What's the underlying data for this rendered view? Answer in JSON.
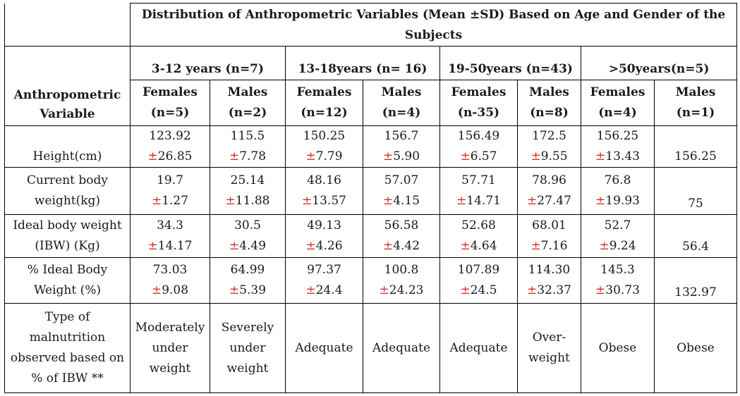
{
  "title": "Distribution of Anthropometric Variables (Mean ±SD) Based on Age and Gender of the Subjects",
  "variable_header": "Anthropometric Variable",
  "groups": [
    "3-12 years (n=7)",
    "13-18years (n= 16)",
    "19-50years (n=43)",
    ">50years(n=5)"
  ],
  "subgroups": [
    {
      "gender": "Females",
      "n": "(n=5)"
    },
    {
      "gender": "Males",
      "n": "(n=2)"
    },
    {
      "gender": "Females",
      "n": "(n=12)"
    },
    {
      "gender": "Males",
      "n": "(n=4)"
    },
    {
      "gender": "Females",
      "n": "(n-35)"
    },
    {
      "gender": "Males",
      "n": "(n=8)"
    },
    {
      "gender": "Females",
      "n": "(n=4)"
    },
    {
      "gender": "Males",
      "n": "(n=1)"
    }
  ],
  "pm_symbol": "±",
  "rows": [
    {
      "label": [
        "Height(cm)"
      ],
      "cells": [
        {
          "mean": "123.92",
          "sd": "26.85"
        },
        {
          "mean": "115.5",
          "sd": "7.78"
        },
        {
          "mean": "150.25",
          "sd": "7.79"
        },
        {
          "mean": "156.7",
          "sd": "5.90"
        },
        {
          "mean": "156.49",
          "sd": "6.57"
        },
        {
          "mean": "172.5",
          "sd": "9.55"
        },
        {
          "mean": "156.25",
          "sd": "13.43"
        },
        {
          "value": "156.25"
        }
      ]
    },
    {
      "label": [
        "Current body",
        "weight(kg)"
      ],
      "cells": [
        {
          "mean": "19.7",
          "sd": "1.27"
        },
        {
          "mean": "25.14",
          "sd": "11.88"
        },
        {
          "mean": "48.16",
          "sd": "13.57"
        },
        {
          "mean": "57.07",
          "sd": "4.15"
        },
        {
          "mean": "57.71",
          "sd": "14.71"
        },
        {
          "mean": "78.96",
          "sd": "27.47"
        },
        {
          "mean": "76.8",
          "sd": "19.93"
        },
        {
          "value": "75"
        }
      ]
    },
    {
      "label": [
        "Ideal body weight",
        "(IBW) (Kg)"
      ],
      "cells": [
        {
          "mean": "34.3",
          "sd": "14.17"
        },
        {
          "mean": "30.5",
          "sd": "4.49"
        },
        {
          "mean": "49.13",
          "sd": "4.26"
        },
        {
          "mean": "56.58",
          "sd": "4.42"
        },
        {
          "mean": "52.68",
          "sd": "4.64"
        },
        {
          "mean": "68.01",
          "sd": "7.16"
        },
        {
          "mean": "52.7",
          "sd": "9.24"
        },
        {
          "value": "56.4"
        }
      ]
    },
    {
      "label": [
        "% Ideal Body",
        "Weight (%)"
      ],
      "cells": [
        {
          "mean": "73.03",
          "sd": "9.08"
        },
        {
          "mean": "64.99",
          "sd": "5.39"
        },
        {
          "mean": "97.37",
          "sd": "24.4"
        },
        {
          "mean": "100.8",
          "sd": "24.23"
        },
        {
          "mean": "107.89",
          "sd": "24.5"
        },
        {
          "mean": "114.30",
          "sd": "32.37"
        },
        {
          "mean": "145.3",
          "sd": "30.73"
        },
        {
          "value": "132.97"
        }
      ]
    },
    {
      "label": [
        "Type of",
        "malnutrition",
        "observed based on",
        "% of IBW **"
      ],
      "cells": [
        {
          "lines": [
            "Moderately",
            "under",
            "weight"
          ]
        },
        {
          "lines": [
            "Severely",
            "under",
            "weight"
          ]
        },
        {
          "lines": [
            "Adequate"
          ]
        },
        {
          "lines": [
            "Adequate"
          ]
        },
        {
          "lines": [
            "Adequate"
          ]
        },
        {
          "lines": [
            "Over-",
            "weight"
          ]
        },
        {
          "lines": [
            "Obese"
          ]
        },
        {
          "lines": [
            "Obese"
          ]
        }
      ]
    }
  ]
}
